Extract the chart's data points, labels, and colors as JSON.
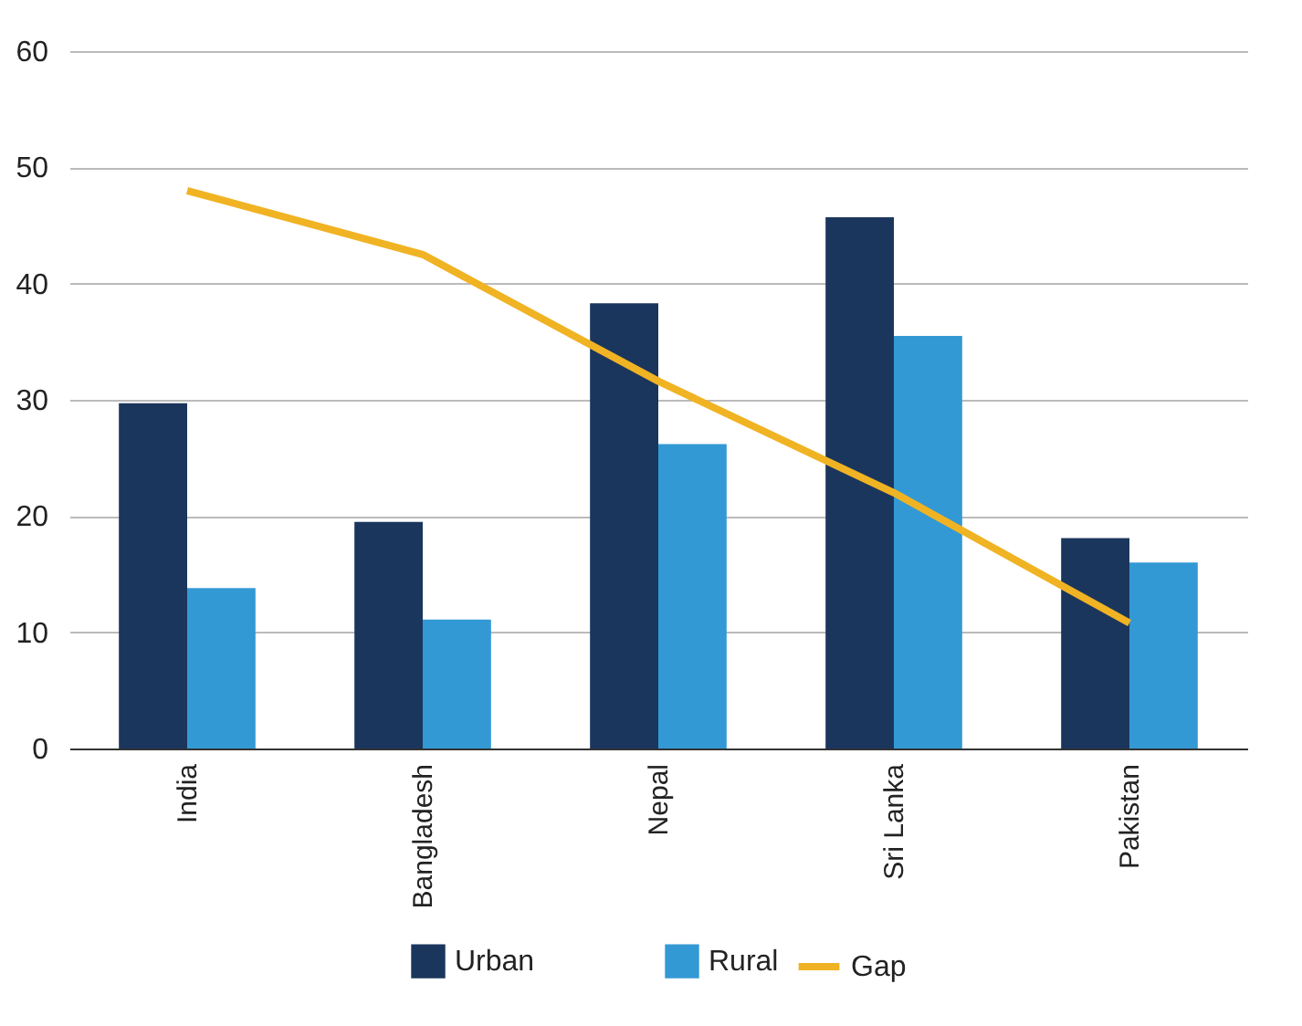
{
  "chart_data": {
    "type": "bar",
    "categories": [
      "India",
      "Bangladesh",
      "Nepal",
      "Sri Lanka",
      "Pakistan"
    ],
    "series": [
      {
        "name": "Urban",
        "color": "#1b365d",
        "values": [
          29.7,
          19.5,
          38.3,
          45.7,
          18.1
        ]
      },
      {
        "name": "Rural",
        "color": "#3399d4",
        "values": [
          13.8,
          11.1,
          26.2,
          35.5,
          16.0
        ]
      },
      {
        "name": "Gap",
        "type": "line",
        "color": "#f0b323",
        "values": [
          48.0,
          42.5,
          31.6,
          22.0,
          10.8
        ]
      }
    ],
    "ylim": [
      0,
      60
    ],
    "yticks": [
      0,
      10,
      20,
      30,
      40,
      50,
      60
    ],
    "grid": "y",
    "legend": "bottom"
  }
}
